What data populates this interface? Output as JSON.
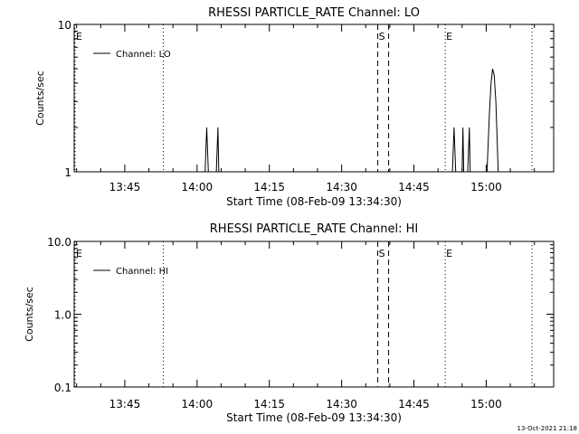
{
  "chart_data": [
    {
      "type": "line",
      "title": "RHESSI PARTICLE_RATE Channel: LO",
      "xlabel": "Start Time (08-Feb-09 13:34:30)",
      "ylabel": "Counts/sec",
      "yscale": "log",
      "ylim": [
        1,
        10
      ],
      "y_ticks": [
        "1",
        "10"
      ],
      "xlim": [
        "13:34:30",
        "15:14:00"
      ],
      "x_ticks": [
        "13:45",
        "14:00",
        "14:15",
        "14:30",
        "14:45",
        "15:00"
      ],
      "legend": {
        "label": "Channel: LO",
        "placement": "top-left"
      },
      "series": [
        {
          "name": "Channel: LO",
          "points": [
            [
              "14:01:40",
              1
            ],
            [
              "14:02:00",
              2
            ],
            [
              "14:02:20",
              1
            ],
            [
              "14:04:00",
              1
            ],
            [
              "14:04:20",
              2
            ],
            [
              "14:04:30",
              1
            ],
            [
              "14:53:00",
              1
            ],
            [
              "14:53:20",
              2
            ],
            [
              "14:53:40",
              1
            ],
            [
              "14:55:00",
              1
            ],
            [
              "14:55:10",
              2
            ],
            [
              "14:55:20",
              1
            ],
            [
              "14:56:10",
              1
            ],
            [
              "14:56:30",
              2
            ],
            [
              "14:56:40",
              1
            ],
            [
              "15:00:10",
              1
            ],
            [
              "15:00:40",
              2.5
            ],
            [
              "15:01:00",
              4
            ],
            [
              "15:01:20",
              5
            ],
            [
              "15:01:40",
              4.5
            ],
            [
              "15:02:00",
              3
            ],
            [
              "15:02:30",
              1
            ]
          ]
        }
      ],
      "markers": [
        {
          "label": "E",
          "time": "13:34:30",
          "style": "dotted"
        },
        {
          "time": "13:53:00",
          "style": "dotted"
        },
        {
          "label": "S",
          "time": "14:37:30",
          "style": "dashed"
        },
        {
          "time": "14:39:45",
          "style": "dashed"
        },
        {
          "label": "E",
          "time": "14:51:30",
          "style": "dotted"
        },
        {
          "time": "15:09:30",
          "style": "dotted"
        }
      ]
    },
    {
      "type": "line",
      "title": "RHESSI PARTICLE_RATE Channel: HI",
      "xlabel": "Start Time (08-Feb-09 13:34:30)",
      "ylabel": "Counts/sec",
      "yscale": "log",
      "ylim": [
        0.1,
        10
      ],
      "y_ticks": [
        "10.0",
        "1.0",
        "0.1"
      ],
      "xlim": [
        "13:34:30",
        "15:14:00"
      ],
      "x_ticks": [
        "13:45",
        "14:00",
        "14:15",
        "14:30",
        "14:45",
        "15:00"
      ],
      "legend": {
        "label": "Channel: HI",
        "placement": "top-left"
      },
      "series": [
        {
          "name": "Channel: HI",
          "points": []
        }
      ],
      "markers": [
        {
          "label": "E",
          "time": "13:34:30",
          "style": "dotted"
        },
        {
          "time": "13:53:00",
          "style": "dotted"
        },
        {
          "label": "S",
          "time": "14:37:30",
          "style": "dashed"
        },
        {
          "time": "14:39:45",
          "style": "dashed"
        },
        {
          "label": "E",
          "time": "14:51:30",
          "style": "dotted"
        },
        {
          "time": "15:09:30",
          "style": "dotted"
        }
      ]
    }
  ],
  "footer": {
    "timestamp": "13-Oct-2021 21:18"
  }
}
